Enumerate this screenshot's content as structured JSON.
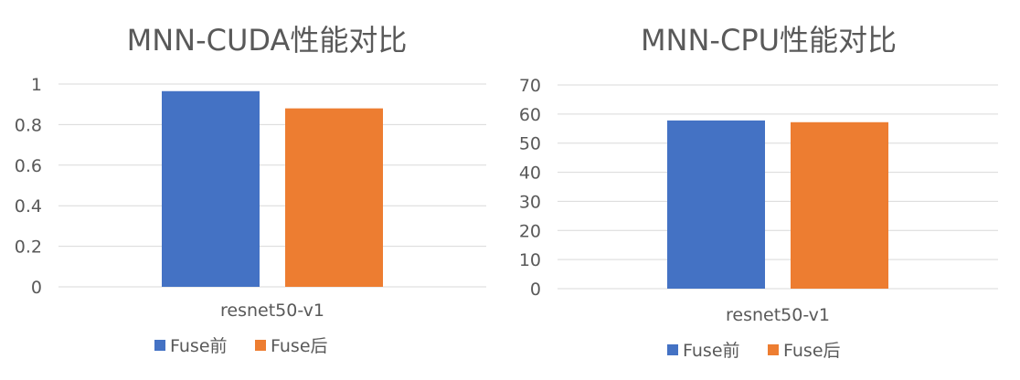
{
  "chart_data": [
    {
      "type": "bar",
      "title": "MNN-CUDA性能对比",
      "xlabel": "",
      "ylabel": "",
      "categories": [
        "resnet50-v1"
      ],
      "ylim": [
        0,
        1
      ],
      "yticks": [
        "0",
        "0.2",
        "0.4",
        "0.6",
        "0.8",
        "1"
      ],
      "grid": true,
      "legend_position": "bottom",
      "series": [
        {
          "name": "Fuse前",
          "values": [
            0.965
          ],
          "color": "#4472C4"
        },
        {
          "name": "Fuse后",
          "values": [
            0.88
          ],
          "color": "#ED7D31"
        }
      ]
    },
    {
      "type": "bar",
      "title": "MNN-CPU性能对比",
      "xlabel": "",
      "ylabel": "",
      "categories": [
        "resnet50-v1"
      ],
      "ylim": [
        0,
        70
      ],
      "yticks": [
        "0",
        "10",
        "20",
        "30",
        "40",
        "50",
        "60",
        "70"
      ],
      "grid": true,
      "legend_position": "bottom",
      "series": [
        {
          "name": "Fuse前",
          "values": [
            57.8
          ],
          "color": "#4472C4"
        },
        {
          "name": "Fuse后",
          "values": [
            57.2
          ],
          "color": "#ED7D31"
        }
      ]
    }
  ]
}
